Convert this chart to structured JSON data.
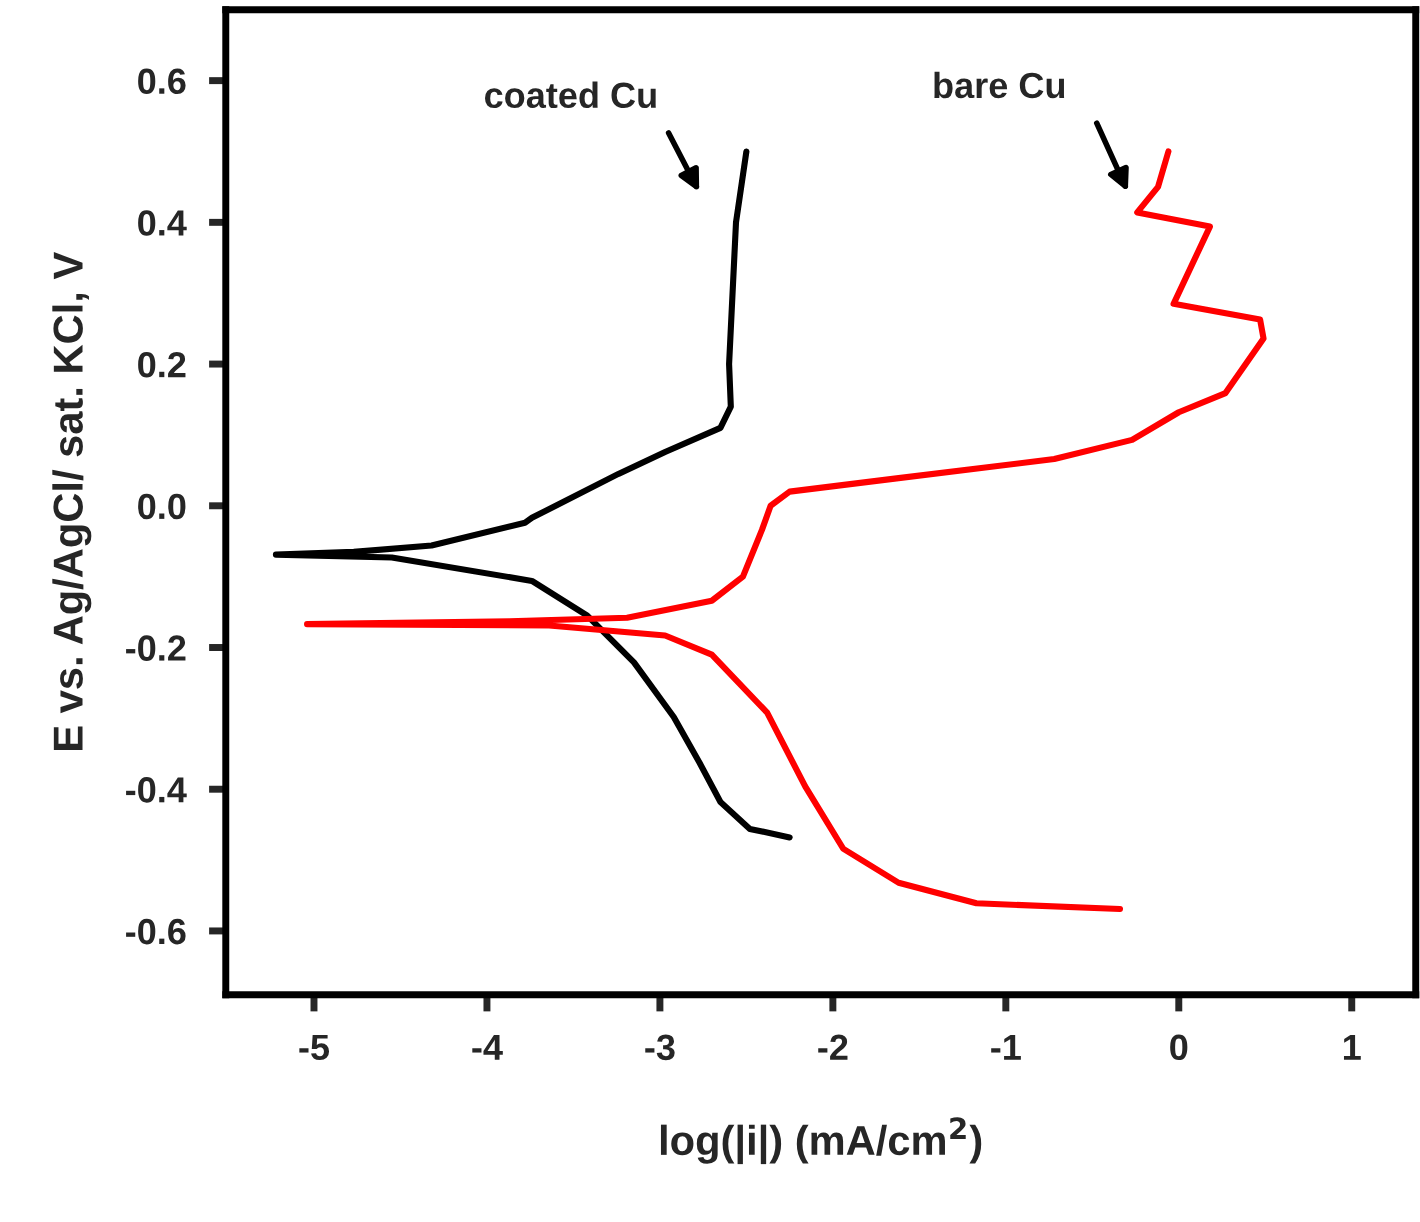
{
  "chart_data": {
    "type": "line",
    "xlabel": "log(|i|) (mA/cm$^{2}$)",
    "ylabel": "E vs. Ag/AgCl/ sat. KCl, V",
    "series": [
      {
        "color": "#000000",
        "x": [
          -2.5,
          -2.56,
          -2.6,
          -2.59,
          -2.65,
          -2.97,
          -3.24,
          -3.74,
          -3.78,
          -4.32,
          -4.77,
          -5.22,
          -4.55,
          -3.74,
          -3.42,
          -3.15,
          -2.92,
          -2.77,
          -2.65,
          -2.48,
          -2.25
        ],
        "values": [
          0.5,
          0.4,
          0.2,
          0.14,
          0.11,
          0.076,
          0.045,
          -0.017,
          -0.024,
          -0.056,
          -0.065,
          -0.069,
          -0.073,
          -0.106,
          -0.155,
          -0.221,
          -0.298,
          -0.363,
          -0.418,
          -0.456,
          -0.468
        ]
      },
      {
        "color": "#ff0000",
        "x": [
          -0.06,
          -0.12,
          -0.24,
          0.18,
          -0.03,
          0.47,
          0.49,
          0.27,
          0.0,
          -0.27,
          -0.72,
          -1.62,
          -2.25,
          -2.36,
          -2.41,
          -2.52,
          -2.7,
          -3.19,
          -3.87,
          -5.04,
          -3.64,
          -2.97,
          -2.7,
          -2.38,
          -2.16,
          -1.94,
          -1.62,
          -1.17,
          -0.34
        ],
        "values": [
          0.5,
          0.45,
          0.414,
          0.394,
          0.285,
          0.263,
          0.236,
          0.159,
          0.132,
          0.093,
          0.066,
          0.039,
          0.02,
          0.0,
          -0.034,
          -0.1,
          -0.134,
          -0.158,
          -0.163,
          -0.167,
          -0.169,
          -0.183,
          -0.21,
          -0.292,
          -0.396,
          -0.484,
          -0.532,
          -0.561,
          -0.569
        ]
      }
    ],
    "annotations": [
      "coated Cu",
      "bare Cu"
    ],
    "xlim": [
      -5.51,
      1.37
    ],
    "xticks": [
      -5,
      -4,
      -3,
      -2,
      -1,
      0,
      1
    ],
    "ylim": [
      -0.69,
      0.7
    ],
    "yticks": [
      -0.6,
      -0.4,
      -0.2,
      {
        "value": 0,
        "label": "0.0"
      },
      0.2,
      0.4,
      0.6
    ],
    "grid": false,
    "legend": false,
    "marker": "none",
    "line_style": "solid"
  }
}
